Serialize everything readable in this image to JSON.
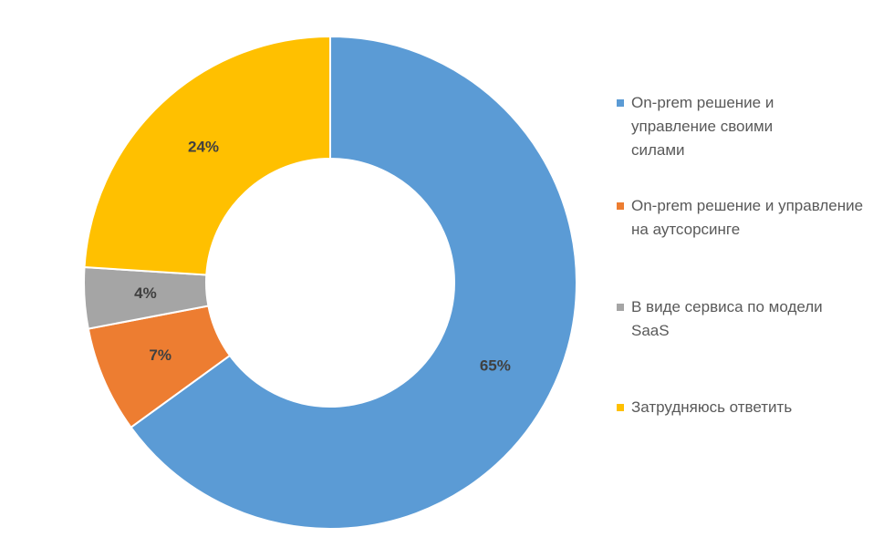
{
  "chart_data": {
    "type": "donut",
    "categories": [
      "On-prem решение и управление своими силами",
      "On-prem решение и управление на аутсорсинге",
      "В виде сервиса по модели SaaS",
      "Затрудняюсь ответить"
    ],
    "values": [
      65,
      7,
      4,
      24
    ],
    "value_labels": [
      "65%",
      "7%",
      "4%",
      "24%"
    ],
    "colors": [
      "#5b9bd5",
      "#ed7d31",
      "#a5a5a5",
      "#ffc000"
    ],
    "legend": "right"
  }
}
